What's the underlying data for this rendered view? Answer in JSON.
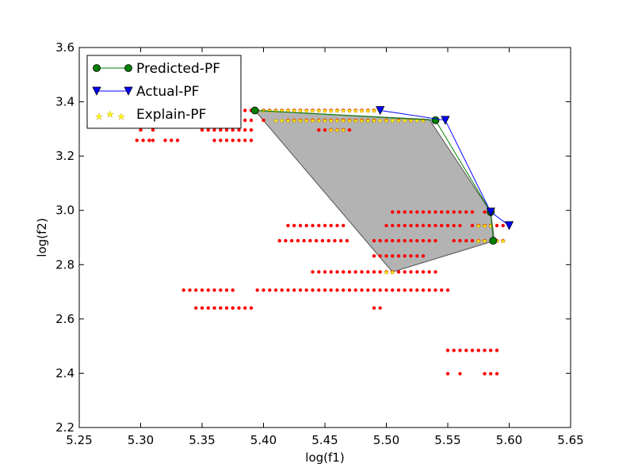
{
  "chart_data": {
    "type": "scatter",
    "title": "",
    "xlabel": "log(f1)",
    "ylabel": "log(f2)",
    "xlim": [
      5.25,
      5.65
    ],
    "ylim": [
      2.2,
      3.6
    ],
    "xticks": [
      "5.25",
      "5.30",
      "5.35",
      "5.40",
      "5.45",
      "5.50",
      "5.55",
      "5.60",
      "5.65"
    ],
    "yticks": [
      "2.2",
      "2.4",
      "2.6",
      "2.8",
      "3.0",
      "3.2",
      "3.4",
      "3.6"
    ],
    "grid": false,
    "legend_position": "top-left",
    "legend": [
      {
        "label": "Predicted-PF",
        "color": "#007f00",
        "marker": "circle"
      },
      {
        "label": "Actual-PF",
        "color": "#0000ff",
        "marker": "triangle-down"
      },
      {
        "label": "Explain-PF",
        "color": "#ffff00",
        "marker": "star"
      }
    ],
    "shaded_region": {
      "color": "#808080",
      "points": [
        [
          5.393,
          3.368
        ],
        [
          5.535,
          3.335
        ],
        [
          5.585,
          2.994
        ],
        [
          5.588,
          2.888
        ],
        [
          5.505,
          2.773
        ]
      ]
    },
    "series": [
      {
        "name": "Predicted-PF",
        "kind": "line-marker",
        "color": "#007f00",
        "marker": "circle",
        "points": [
          [
            5.393,
            3.368
          ],
          [
            5.54,
            3.332
          ],
          [
            5.585,
            2.994
          ],
          [
            5.587,
            2.888
          ]
        ]
      },
      {
        "name": "Actual-PF",
        "kind": "line-marker",
        "color": "#0000ff",
        "marker": "triangle-down",
        "points": [
          [
            5.495,
            3.368
          ],
          [
            5.548,
            3.332
          ],
          [
            5.585,
            2.994
          ],
          [
            5.6,
            2.944
          ]
        ]
      }
    ],
    "scatter_red": {
      "color": "#ff0000",
      "clusters": [
        {
          "y": 3.368,
          "x": [
            5.38,
            5.385,
            5.39,
            5.395,
            5.4,
            5.405,
            5.41,
            5.415,
            5.42,
            5.425,
            5.43,
            5.435,
            5.44,
            5.445,
            5.45,
            5.455,
            5.46,
            5.465,
            5.47,
            5.475,
            5.48,
            5.485,
            5.49,
            5.495
          ]
        },
        {
          "y": 3.332,
          "x": [
            5.3,
            5.305,
            5.31,
            5.35,
            5.36,
            5.365,
            5.37,
            5.375,
            5.385,
            5.39,
            5.4,
            5.42,
            5.425,
            5.43,
            5.435,
            5.44,
            5.445,
            5.45,
            5.455,
            5.46,
            5.465,
            5.47,
            5.475,
            5.48,
            5.485,
            5.49,
            5.5,
            5.51,
            5.52,
            5.53
          ]
        },
        {
          "y": 3.296,
          "x": [
            5.3,
            5.31,
            5.35,
            5.355,
            5.36,
            5.365,
            5.37,
            5.375,
            5.38,
            5.385,
            5.39,
            5.445,
            5.45,
            5.455,
            5.46,
            5.465,
            5.47
          ]
        },
        {
          "y": 3.258,
          "x": [
            5.297,
            5.302,
            5.307,
            5.31,
            5.32,
            5.325,
            5.33,
            5.36,
            5.365,
            5.37,
            5.375,
            5.38,
            5.385,
            5.39
          ]
        },
        {
          "y": 2.994,
          "x": [
            5.505,
            5.51,
            5.515,
            5.52,
            5.525,
            5.53,
            5.535,
            5.54,
            5.545,
            5.55,
            5.555,
            5.56,
            5.565,
            5.57,
            5.58,
            5.585
          ]
        },
        {
          "y": 2.944,
          "x": [
            5.42,
            5.425,
            5.43,
            5.435,
            5.44,
            5.445,
            5.45,
            5.455,
            5.46,
            5.465,
            5.5,
            5.505,
            5.51,
            5.515,
            5.52,
            5.525,
            5.53,
            5.535,
            5.54,
            5.545,
            5.55,
            5.555,
            5.56,
            5.57,
            5.575,
            5.58,
            5.585,
            5.59,
            5.595
          ]
        },
        {
          "y": 2.888,
          "x": [
            5.413,
            5.418,
            5.423,
            5.428,
            5.433,
            5.438,
            5.443,
            5.448,
            5.453,
            5.458,
            5.463,
            5.468,
            5.49,
            5.495,
            5.5,
            5.505,
            5.51,
            5.515,
            5.52,
            5.525,
            5.53,
            5.535,
            5.54,
            5.555,
            5.56,
            5.565,
            5.57,
            5.575,
            5.58,
            5.59,
            5.595
          ]
        },
        {
          "y": 2.832,
          "x": [
            5.49,
            5.495,
            5.5,
            5.505,
            5.51,
            5.515,
            5.52,
            5.525,
            5.53
          ]
        },
        {
          "y": 2.773,
          "x": [
            5.44,
            5.445,
            5.45,
            5.455,
            5.46,
            5.465,
            5.47,
            5.475,
            5.48,
            5.485,
            5.49,
            5.495,
            5.5,
            5.505,
            5.51,
            5.515,
            5.52,
            5.525,
            5.53,
            5.535,
            5.54
          ]
        },
        {
          "y": 2.706,
          "x": [
            5.335,
            5.34,
            5.345,
            5.35,
            5.355,
            5.36,
            5.365,
            5.37,
            5.375,
            5.395,
            5.4,
            5.405,
            5.41,
            5.415,
            5.42,
            5.425,
            5.43,
            5.435,
            5.44,
            5.445,
            5.45,
            5.455,
            5.46,
            5.465,
            5.47,
            5.475,
            5.48,
            5.485,
            5.49,
            5.495,
            5.5,
            5.505,
            5.51,
            5.515,
            5.52,
            5.525,
            5.53,
            5.535,
            5.54,
            5.545,
            5.55
          ]
        },
        {
          "y": 2.64,
          "x": [
            5.345,
            5.35,
            5.355,
            5.36,
            5.365,
            5.37,
            5.375,
            5.38,
            5.385,
            5.39,
            5.49,
            5.495
          ]
        },
        {
          "y": 2.484,
          "x": [
            5.55,
            5.555,
            5.56,
            5.565,
            5.57,
            5.575,
            5.58,
            5.585,
            5.59
          ]
        },
        {
          "y": 2.398,
          "x": [
            5.55,
            5.56,
            5.58,
            5.585,
            5.59
          ]
        }
      ]
    },
    "scatter_explain": {
      "color": "#ffff00",
      "edge": "#b8860b",
      "clusters": [
        {
          "y": 3.368,
          "x": [
            5.395,
            5.4,
            5.405,
            5.41,
            5.415,
            5.42,
            5.425,
            5.43,
            5.435,
            5.44,
            5.445,
            5.45,
            5.455,
            5.46,
            5.465,
            5.47,
            5.475,
            5.48,
            5.485,
            5.49
          ]
        },
        {
          "y": 3.332,
          "x": [
            5.41,
            5.415,
            5.42,
            5.425,
            5.43,
            5.435,
            5.44,
            5.445,
            5.45,
            5.455,
            5.46,
            5.465,
            5.47,
            5.475,
            5.48,
            5.485,
            5.49,
            5.495,
            5.5,
            5.505,
            5.51,
            5.515,
            5.52,
            5.525,
            5.53
          ]
        },
        {
          "y": 3.296,
          "x": [
            5.455,
            5.46,
            5.465
          ]
        },
        {
          "y": 2.944,
          "x": [
            5.575,
            5.58,
            5.585
          ]
        },
        {
          "y": 2.888,
          "x": [
            5.575,
            5.58,
            5.59,
            5.595
          ]
        },
        {
          "y": 2.773,
          "x": [
            5.5,
            5.505
          ]
        }
      ]
    }
  }
}
